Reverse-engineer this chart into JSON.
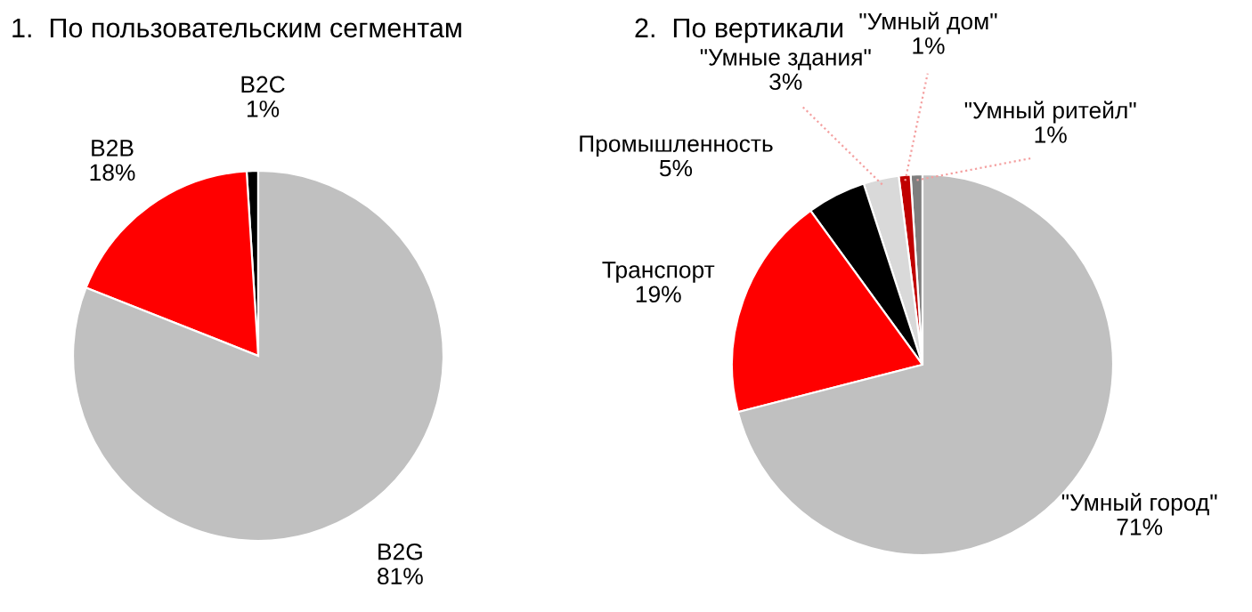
{
  "chart_data": [
    {
      "type": "pie",
      "title": "1.  По пользовательским сегментам",
      "categories": [
        "B2C",
        "B2B",
        "B2G"
      ],
      "values": [
        1,
        18,
        81
      ],
      "colors": [
        "#000000",
        "#ff0000",
        "#c0c0c0"
      ],
      "value_labels": [
        "1%",
        "18%",
        "81%"
      ],
      "legend": false
    },
    {
      "type": "pie",
      "title": "2.  По вертикали",
      "categories": [
        "\"Умный ритейл\"",
        "\"Умный дом\"",
        "\"Умные здания\"",
        "Промышленность",
        "Транспорт",
        "\"Умный город\""
      ],
      "values": [
        1,
        1,
        3,
        5,
        19,
        71
      ],
      "colors": [
        "#7f7f7f",
        "#c00000",
        "#d9d9d9",
        "#000000",
        "#ff0000",
        "#c0c0c0"
      ],
      "value_labels": [
        "1%",
        "1%",
        "3%",
        "5%",
        "19%",
        "71%"
      ],
      "legend": false
    }
  ]
}
